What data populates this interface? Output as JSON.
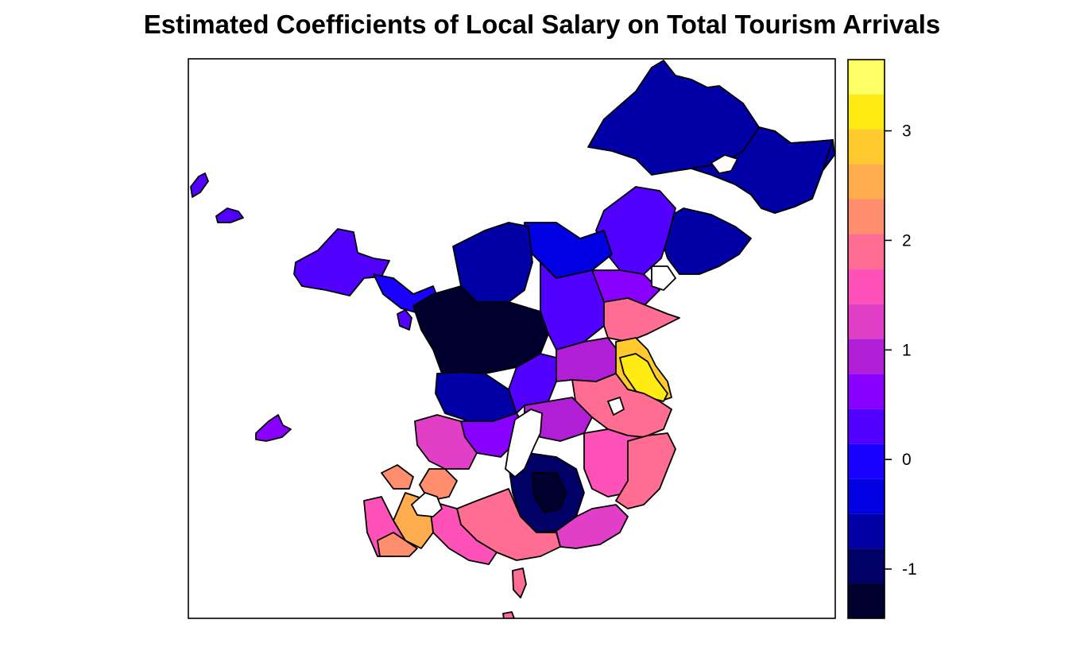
{
  "title": "Estimated Coefficients of Local Salary on Total Tourism Arrivals",
  "map": {
    "type": "choropleth",
    "value_min": -1.45,
    "value_max": 3.65
  },
  "legend": {
    "placement": "right",
    "bin_width": 0.3189,
    "colors": [
      "#00002e",
      "#000066",
      "#0000a6",
      "#0000e3",
      "#1a00ff",
      "#5200ff",
      "#8a00ff",
      "#b01ed6",
      "#e13fc8",
      "#ff52b8",
      "#ff6e92",
      "#ff8e6e",
      "#ffac4e",
      "#ffca2e",
      "#ffea14",
      "#ffff66"
    ],
    "ticks": [
      {
        "value": -1,
        "label": "-1"
      },
      {
        "value": 0,
        "label": "0"
      },
      {
        "value": 1,
        "label": "1"
      },
      {
        "value": 2,
        "label": "2"
      },
      {
        "value": 3,
        "label": "3"
      }
    ]
  }
}
